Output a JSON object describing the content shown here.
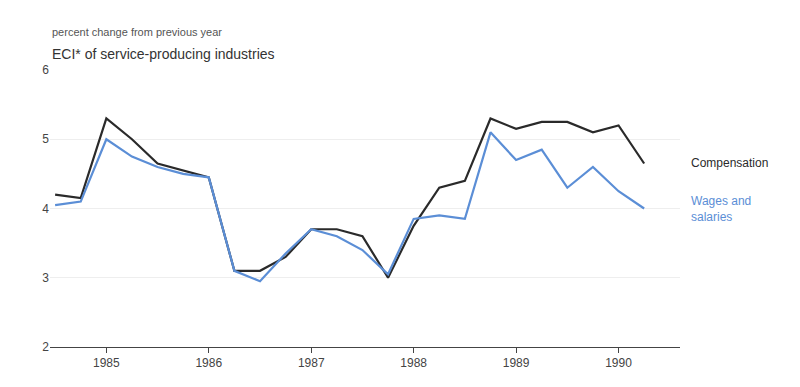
{
  "chart_data": {
    "type": "line",
    "title": "ECI* of service-producing industries",
    "subtitle": "percent change from previous year",
    "x": [
      1984.5,
      1984.75,
      1985.0,
      1985.25,
      1985.5,
      1985.75,
      1986.0,
      1986.25,
      1986.5,
      1986.75,
      1987.0,
      1987.25,
      1987.5,
      1987.75,
      1988.0,
      1988.25,
      1988.5,
      1988.75,
      1989.0,
      1989.25,
      1989.5,
      1989.75,
      1990.0,
      1990.25
    ],
    "series": [
      {
        "name": "Compensation",
        "color": "#2a2a2a",
        "values": [
          4.2,
          4.15,
          5.3,
          5.0,
          4.65,
          4.55,
          4.45,
          3.1,
          3.1,
          3.3,
          3.7,
          3.7,
          3.6,
          3.0,
          3.75,
          4.3,
          4.4,
          5.3,
          5.15,
          5.25,
          5.25,
          5.1,
          5.2,
          4.65
        ]
      },
      {
        "name": "Wages and\nsalaries",
        "color": "#5b8ed6",
        "values": [
          4.05,
          4.1,
          5.0,
          4.75,
          4.6,
          4.5,
          4.45,
          3.1,
          2.95,
          3.35,
          3.7,
          3.6,
          3.4,
          3.05,
          3.85,
          3.9,
          3.85,
          5.1,
          4.7,
          4.85,
          4.3,
          4.6,
          4.25,
          4.0
        ]
      }
    ],
    "xlim": [
      1984.45,
      1990.6
    ],
    "xticks": [
      1985,
      1986,
      1987,
      1988,
      1989,
      1990
    ],
    "ylim": [
      2,
      6
    ],
    "yticks": [
      2,
      3,
      4,
      5,
      6
    ],
    "grid": "y"
  }
}
